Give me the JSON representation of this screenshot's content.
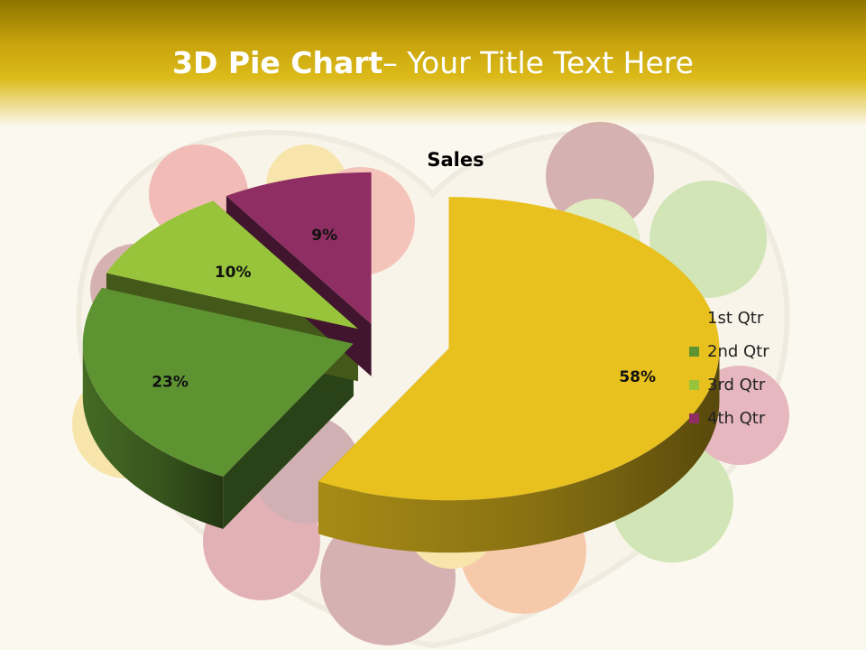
{
  "slide": {
    "title_bold": "3D Pie Chart",
    "title_rest": "– Your Title Text Here"
  },
  "chart_data": {
    "type": "pie",
    "title": "Sales",
    "categories": [
      "1st Qtr",
      "2nd Qtr",
      "3rd Qtr",
      "4th Qtr"
    ],
    "values": [
      58,
      23,
      10,
      9
    ],
    "data_labels": [
      "58%",
      "23%",
      "10%",
      "9%"
    ],
    "colors": [
      "#e8c11f",
      "#5e9332",
      "#97c43a",
      "#8e2e63"
    ],
    "style": "3d-exploded",
    "legend_position": "right"
  },
  "background": {
    "image": "heart-shaped bowl of colorful candies",
    "accent": "#c9a40c"
  }
}
